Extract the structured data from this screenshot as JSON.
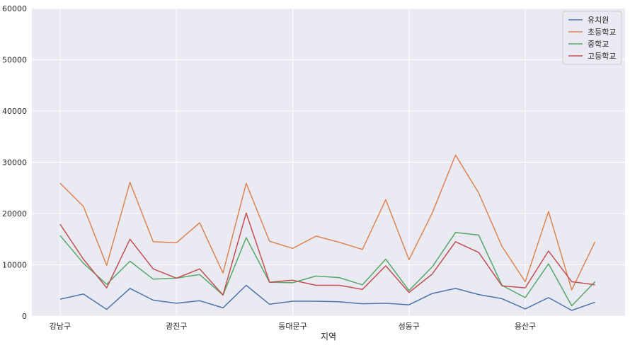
{
  "chart_data": {
    "type": "line",
    "xlabel": "지역",
    "ylabel": "",
    "ylim": [
      0,
      60000
    ],
    "yticks": [
      0,
      10000,
      20000,
      30000,
      40000,
      50000,
      60000
    ],
    "xtick_labels": [
      {
        "index": 0,
        "label": "강남구"
      },
      {
        "index": 5,
        "label": "광진구"
      },
      {
        "index": 10,
        "label": "동대문구"
      },
      {
        "index": 15,
        "label": "성동구"
      },
      {
        "index": 20,
        "label": "용산구"
      }
    ],
    "grid": true,
    "legend_position": "top-right",
    "background": "#eaeaf2",
    "x": [
      0,
      1,
      2,
      3,
      4,
      5,
      6,
      7,
      8,
      9,
      10,
      11,
      12,
      13,
      14,
      15,
      16,
      17,
      18,
      19,
      20,
      21,
      22,
      23
    ],
    "series": [
      {
        "name": "유치원",
        "color": "#4c72b0",
        "values": [
          3300,
          4300,
          1300,
          5400,
          3100,
          2500,
          3000,
          1600,
          6000,
          2300,
          2900,
          2900,
          2800,
          2400,
          2500,
          2200,
          4400,
          5400,
          4200,
          3400,
          1400,
          3600,
          1100,
          2700
        ]
      },
      {
        "name": "초등학교",
        "color": "#dd8452",
        "values": [
          25900,
          21400,
          9900,
          26100,
          14500,
          14300,
          18200,
          8400,
          25900,
          14600,
          13200,
          15600,
          14400,
          13000,
          22700,
          11000,
          20100,
          31400,
          24000,
          13600,
          6700,
          20400,
          5100,
          14500
        ]
      },
      {
        "name": "중학교",
        "color": "#55a868",
        "values": [
          15700,
          10300,
          6200,
          10700,
          7200,
          7400,
          8100,
          4100,
          15300,
          6600,
          6500,
          7800,
          7500,
          6100,
          11100,
          5000,
          9600,
          16300,
          15800,
          6000,
          3600,
          10200,
          2000,
          6700
        ]
      },
      {
        "name": "고등학교",
        "color": "#c44e52",
        "values": [
          17900,
          11100,
          5500,
          15000,
          9200,
          7400,
          9200,
          4100,
          20100,
          6600,
          7000,
          6000,
          6000,
          5200,
          9800,
          4600,
          8200,
          14500,
          12400,
          5900,
          5500,
          12700,
          6700,
          6100
        ]
      }
    ]
  }
}
